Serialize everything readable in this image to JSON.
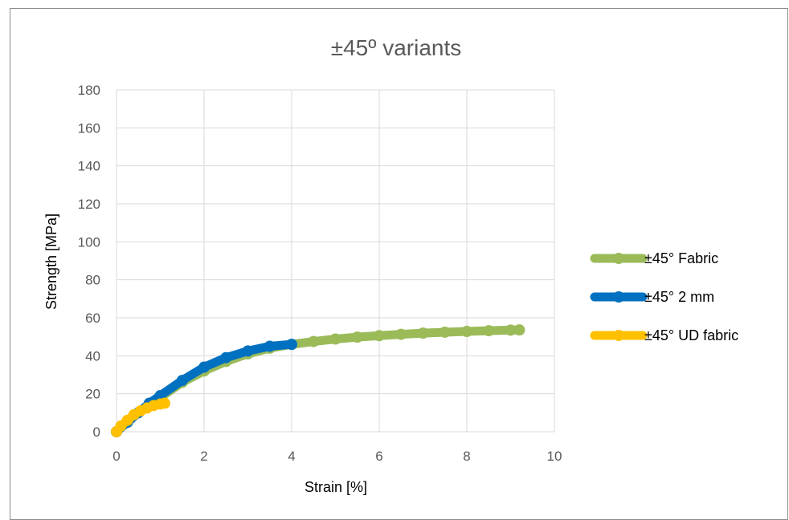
{
  "chart_data": {
    "type": "line",
    "title": "±45º variants",
    "xlabel": "Strain [%]",
    "ylabel": "Strength [MPa]",
    "xlim": [
      0,
      10
    ],
    "ylim": [
      0,
      180
    ],
    "xticks": [
      0,
      2,
      4,
      6,
      8,
      10
    ],
    "yticks": [
      0,
      20,
      40,
      60,
      80,
      100,
      120,
      140,
      160,
      180
    ],
    "grid": true,
    "legend_position": "right",
    "series": [
      {
        "name": "±45° Fabric",
        "color": "#9BBB59",
        "x": [
          0,
          0.25,
          0.5,
          1.0,
          1.5,
          2.0,
          2.5,
          3.0,
          3.5,
          4.0,
          4.5,
          5.0,
          5.5,
          6.0,
          6.5,
          7.0,
          7.5,
          8.0,
          8.5,
          9.0,
          9.2
        ],
        "y": [
          0,
          5,
          10,
          18,
          26,
          32,
          37,
          41,
          44,
          46,
          47.5,
          48.8,
          49.8,
          50.6,
          51.3,
          51.9,
          52.4,
          52.8,
          53.2,
          53.5,
          53.6
        ]
      },
      {
        "name": "±45° 2 mm",
        "color": "#0070C0",
        "x": [
          0,
          0.25,
          0.5,
          0.75,
          1.0,
          1.5,
          2.0,
          2.5,
          3.0,
          3.5,
          4.0
        ],
        "y": [
          0,
          5,
          10,
          15,
          19,
          27,
          34,
          39,
          42.5,
          45,
          46
        ]
      },
      {
        "name": "±45° UD fabric",
        "color": "#FFC000",
        "x": [
          0,
          0.1,
          0.25,
          0.4,
          0.55,
          0.7,
          0.85,
          1.0,
          1.1
        ],
        "y": [
          0,
          3,
          6,
          9,
          11,
          12.5,
          13.8,
          14.6,
          15
        ]
      }
    ]
  }
}
